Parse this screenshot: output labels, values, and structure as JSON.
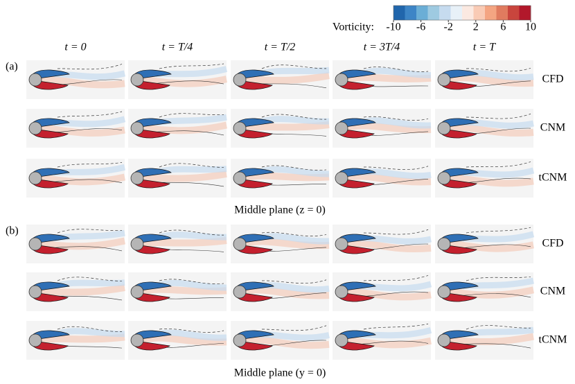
{
  "colorbar": {
    "label": "Vorticity:",
    "range": [
      -10,
      10
    ],
    "ticks": [
      -10,
      -6,
      -2,
      2,
      6,
      10
    ]
  },
  "columns": [
    "t = 0",
    "t = T/4",
    "t = T/2",
    "t = 3T/4",
    "t = T"
  ],
  "groups": [
    {
      "label": "(a)",
      "rows": [
        "CFD",
        "CNM",
        "tCNM"
      ],
      "caption": "Middle plane (z = 0)"
    },
    {
      "label": "(b)",
      "rows": [
        "CFD",
        "CNM",
        "tCNM"
      ],
      "caption": "Middle plane (y = 0)"
    }
  ]
}
